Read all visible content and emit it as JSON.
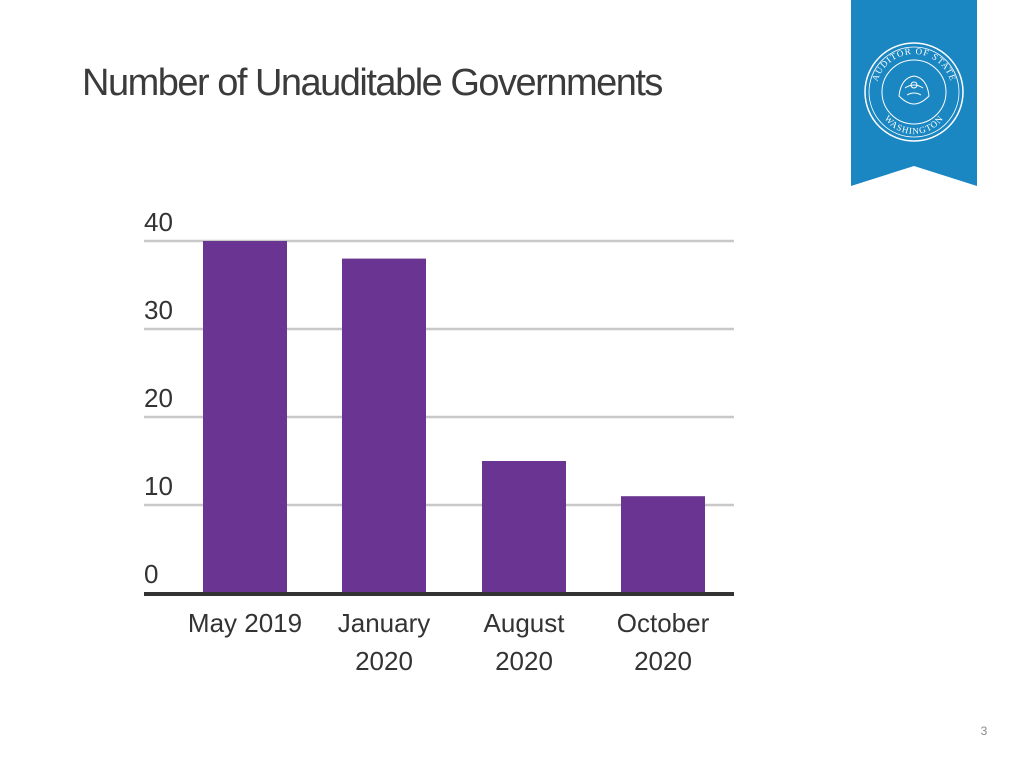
{
  "slide": {
    "title": "Number of Unauditable Governments",
    "page_number": "3"
  },
  "seal": {
    "text_top": "AUDITOR OF STATE",
    "text_bottom": "WASHINGTON",
    "banner_color": "#1a86c2"
  },
  "chart_data": {
    "type": "bar",
    "title": "Number of Unauditable Governments",
    "categories": [
      [
        "May 2019"
      ],
      [
        "January",
        "2020"
      ],
      [
        "August",
        "2020"
      ],
      [
        "October",
        "2020"
      ]
    ],
    "values": [
      40,
      38,
      15,
      11
    ],
    "ylim": [
      0,
      40
    ],
    "yticks": [
      "0",
      "10",
      "20",
      "30",
      "40"
    ],
    "xlabel": "",
    "ylabel": "",
    "grid": true,
    "legend": "none",
    "bar_color": "#6a3592",
    "grid_color": "#c8c8c8",
    "axis_color": "#333333"
  }
}
